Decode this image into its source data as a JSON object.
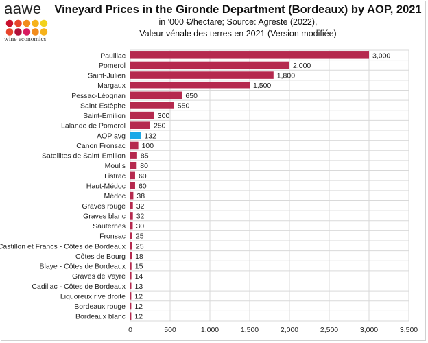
{
  "logo": {
    "brand": "aawe",
    "tagline": "wine economics",
    "dot_colors": [
      "#c8102e",
      "#e8452c",
      "#f28c1c",
      "#f6b21b",
      "#f2d21c",
      "#e8452c",
      "#b0103a",
      "#d81b60",
      "#f28c1c",
      "#f6b21b"
    ]
  },
  "chart_data": {
    "type": "bar",
    "orientation": "horizontal",
    "title": "Vineyard Prices in the Gironde Department (Bordeaux) by AOP, 2021",
    "subtitle_line1": "in '000 €/hectare; Source: Agreste (2022),",
    "subtitle_line2": "Valeur vénale des terres en 2021 (Version modifiée)",
    "categories": [
      "Pauillac",
      "Pomerol",
      "Saint-Julien",
      "Margaux",
      "Pessac-Léognan",
      "Saint-Estèphe",
      "Saint-Emilion",
      "Lalande de Pomerol",
      "AOP avg",
      "Canon Fronsac",
      "Satellites de Saint-Emilion",
      "Moulis",
      "Listrac",
      "Haut-Médoc",
      "Médoc",
      "Graves rouge",
      "Graves blanc",
      "Sauternes",
      "Fronsac",
      "Castillon et Francs - Côtes de Bordeaux",
      "Côtes de Bourg",
      "Blaye - Côtes de Bordeaux",
      "Graves de Vayre",
      "Cadillac - Côtes de Bordeaux",
      "Liquoreux rive droite",
      "Bordeaux rouge",
      "Bordeaux blanc"
    ],
    "values": [
      3000,
      2000,
      1800,
      1500,
      650,
      550,
      300,
      250,
      132,
      100,
      85,
      80,
      60,
      60,
      38,
      32,
      32,
      30,
      25,
      25,
      18,
      15,
      14,
      13,
      12,
      12,
      12
    ],
    "value_labels": [
      "3,000",
      "2,000",
      "1,800",
      "1,500",
      "650",
      "550",
      "300",
      "250",
      "132",
      "100",
      "85",
      "80",
      "60",
      "60",
      "38",
      "32",
      "32",
      "30",
      "25",
      "25",
      "18",
      "15",
      "14",
      "13",
      "12",
      "12",
      "12"
    ],
    "highlight_category": "AOP avg",
    "xlim": [
      0,
      3500
    ],
    "xticks": [
      0,
      500,
      1000,
      1500,
      2000,
      2500,
      3000,
      3500
    ],
    "xtick_labels": [
      "0",
      "500",
      "1,000",
      "1,500",
      "2,000",
      "2,500",
      "3,000",
      "3,500"
    ],
    "grid": true,
    "colors": {
      "bar": "#b5294e",
      "highlight": "#1ba9e8",
      "grid": "#d9d9d9"
    }
  }
}
